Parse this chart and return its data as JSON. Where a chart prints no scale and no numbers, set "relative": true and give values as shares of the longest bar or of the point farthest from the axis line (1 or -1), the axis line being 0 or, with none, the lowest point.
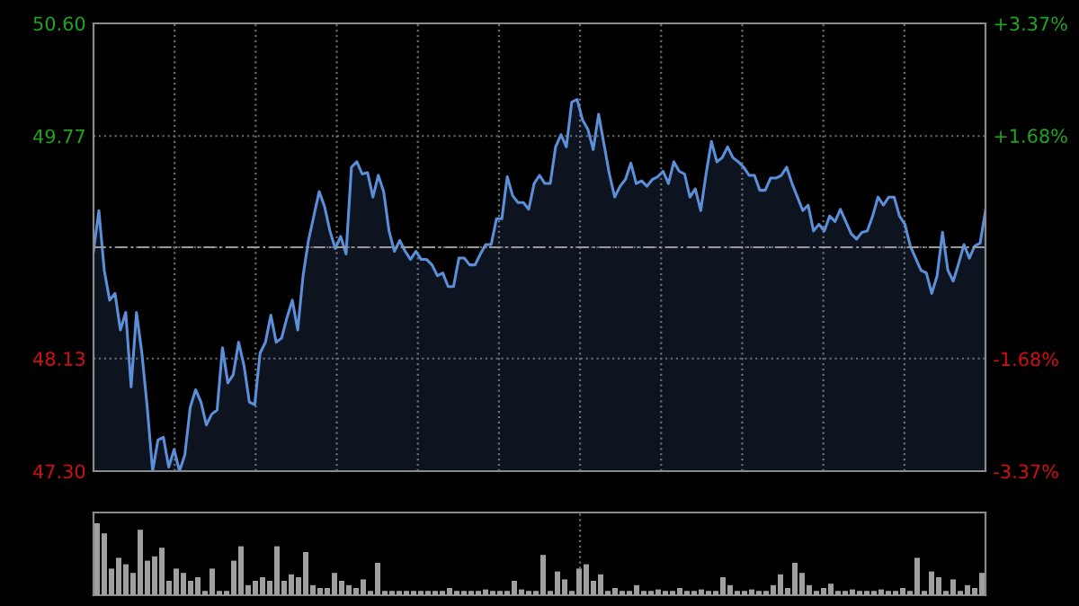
{
  "chart_data": [
    {
      "type": "area",
      "grid": true,
      "tick_labels": "y",
      "line_style": "solid",
      "ylim": [
        47.3,
        50.6
      ],
      "yticks": [
        {
          "value": 47.3,
          "label": "47.30"
        },
        {
          "value": 48.13,
          "label": "48.13"
        },
        {
          "value": 48.95,
          "label": null
        },
        {
          "value": 49.77,
          "label": "49.77"
        },
        {
          "value": 50.6,
          "label": "50.60"
        }
      ],
      "y2lim": [
        -3.37,
        3.37
      ],
      "y2ticks": [
        {
          "value": -3.37,
          "label": "-3.37%"
        },
        {
          "value": -1.68,
          "label": "-1.68%"
        },
        {
          "value": 0,
          "label": null
        },
        {
          "value": 1.68,
          "label": "+1.68%"
        },
        {
          "value": 3.37,
          "label": "+3.37%"
        }
      ],
      "ref_lines": [
        {
          "axis": "y",
          "value": 48.95,
          "label": null,
          "color": "#9a9a9a",
          "line_style": "dashed"
        }
      ],
      "categories": [
        null,
        null,
        null,
        null,
        null,
        null,
        null,
        null,
        null,
        null,
        null,
        null,
        null,
        null,
        null,
        null,
        null,
        null,
        null,
        null,
        null,
        null,
        null,
        null,
        null,
        null,
        null,
        null,
        null,
        null,
        null,
        null,
        null,
        null,
        null,
        null,
        null,
        null,
        null,
        null,
        null,
        null,
        null,
        null,
        null,
        null,
        null,
        null,
        null,
        null,
        null,
        null,
        null,
        null,
        null,
        null,
        null,
        null,
        null,
        null,
        null,
        null,
        null,
        null,
        null,
        null,
        null,
        null,
        null,
        null,
        null,
        null,
        null,
        null,
        null,
        null,
        null,
        null,
        null,
        null,
        null,
        null,
        null,
        null,
        null,
        null,
        null,
        null,
        null,
        null,
        null,
        null,
        null,
        null,
        null,
        null,
        null,
        null,
        null,
        null,
        null,
        null,
        null,
        null,
        null,
        null,
        null,
        null,
        null,
        null,
        null,
        null,
        null,
        null,
        null,
        null,
        null,
        null,
        null,
        null,
        null,
        null,
        null,
        null,
        null,
        null,
        null,
        null,
        null,
        null,
        null,
        null,
        null,
        null,
        null,
        null,
        null,
        null,
        null,
        null,
        null,
        null,
        null,
        null,
        null,
        null,
        null,
        null,
        null,
        null,
        null,
        null,
        null,
        null,
        null,
        null,
        null,
        null,
        null,
        null,
        null,
        null,
        null,
        null,
        null,
        null,
        null
      ],
      "series": [
        {
          "color": "#5b8fd9",
          "values": [
            48.92,
            49.22,
            48.78,
            48.56,
            48.61,
            48.34,
            48.47,
            47.92,
            48.47,
            48.17,
            47.77,
            47.3,
            47.53,
            47.55,
            47.33,
            47.46,
            47.3,
            47.42,
            47.77,
            47.9,
            47.81,
            47.64,
            47.72,
            47.75,
            48.21,
            47.95,
            48.01,
            48.25,
            48.08,
            47.81,
            47.79,
            48.17,
            48.25,
            48.45,
            48.25,
            48.28,
            48.43,
            48.56,
            48.34,
            48.74,
            49.0,
            49.18,
            49.36,
            49.25,
            49.07,
            48.94,
            49.03,
            48.9,
            49.54,
            49.58,
            49.49,
            49.5,
            49.32,
            49.48,
            49.36,
            49.07,
            48.92,
            49.0,
            48.92,
            48.86,
            48.92,
            48.86,
            48.86,
            48.82,
            48.74,
            48.76,
            48.66,
            48.66,
            48.87,
            48.87,
            48.82,
            48.82,
            48.9,
            48.97,
            48.97,
            49.16,
            49.16,
            49.47,
            49.33,
            49.28,
            49.28,
            49.23,
            49.42,
            49.48,
            49.42,
            49.42,
            49.69,
            49.78,
            49.69,
            50.02,
            50.04,
            49.89,
            49.82,
            49.67,
            49.93,
            49.71,
            49.49,
            49.32,
            49.4,
            49.45,
            49.57,
            49.42,
            49.44,
            49.4,
            49.45,
            49.47,
            49.51,
            49.42,
            49.58,
            49.51,
            49.49,
            49.32,
            49.38,
            49.22,
            49.49,
            49.73,
            49.58,
            49.61,
            49.69,
            49.61,
            49.58,
            49.54,
            49.48,
            49.48,
            49.37,
            49.37,
            49.46,
            49.46,
            49.48,
            49.54,
            49.42,
            49.32,
            49.22,
            49.26,
            49.07,
            49.12,
            49.07,
            49.18,
            49.14,
            49.23,
            49.14,
            49.05,
            49.01,
            49.06,
            49.07,
            49.18,
            49.32,
            49.26,
            49.32,
            49.32,
            49.18,
            49.12,
            48.96,
            48.87,
            48.78,
            48.76,
            48.61,
            48.74,
            49.06,
            48.78,
            48.7,
            48.83,
            48.97,
            48.87,
            48.96,
            48.98,
            49.22
          ]
        }
      ]
    },
    {
      "type": "bar",
      "relative": true,
      "grid": "x",
      "tick_labels": false,
      "color": "#a0a0a0",
      "categories": [
        null,
        null,
        null,
        null,
        null,
        null,
        null,
        null,
        null,
        null,
        null,
        null,
        null,
        null,
        null,
        null,
        null,
        null,
        null,
        null,
        null,
        null,
        null,
        null,
        null,
        null,
        null,
        null,
        null,
        null,
        null,
        null,
        null,
        null,
        null,
        null,
        null,
        null,
        null,
        null,
        null,
        null,
        null,
        null,
        null,
        null,
        null,
        null,
        null,
        null,
        null,
        null,
        null,
        null,
        null,
        null,
        null,
        null,
        null,
        null,
        null,
        null,
        null,
        null,
        null,
        null,
        null,
        null,
        null,
        null,
        null,
        null,
        null,
        null,
        null,
        null,
        null,
        null,
        null,
        null,
        null,
        null,
        null,
        null,
        null,
        null,
        null,
        null,
        null,
        null,
        null,
        null,
        null,
        null,
        null,
        null,
        null,
        null,
        null,
        null,
        null,
        null,
        null,
        null,
        null,
        null,
        null,
        null,
        null,
        null,
        null,
        null,
        null,
        null,
        null,
        null,
        null,
        null,
        null,
        null,
        null,
        null,
        null,
        null
      ],
      "values": [
        1.0,
        0.86,
        0.37,
        0.52,
        0.43,
        0.31,
        0.91,
        0.48,
        0.54,
        0.66,
        0.2,
        0.37,
        0.31,
        0.2,
        0.25,
        0.06,
        0.37,
        0.06,
        0.06,
        0.48,
        0.68,
        0.14,
        0.2,
        0.25,
        0.2,
        0.68,
        0.2,
        0.29,
        0.25,
        0.6,
        0.14,
        0.1,
        0.1,
        0.31,
        0.2,
        0.14,
        0.1,
        0.22,
        0.06,
        0.45,
        0.06,
        0.06,
        0.06,
        0.06,
        0.06,
        0.06,
        0.06,
        0.06,
        0.06,
        0.1,
        0.06,
        0.06,
        0.06,
        0.06,
        0.08,
        0.06,
        0.06,
        0.06,
        0.2,
        0.08,
        0.06,
        0.06,
        0.56,
        0.06,
        0.33,
        0.22,
        0.06,
        0.37,
        0.43,
        0.2,
        0.29,
        0.06,
        0.1,
        0.06,
        0.06,
        0.14,
        0.06,
        0.06,
        0.08,
        0.06,
        0.06,
        0.1,
        0.06,
        0.06,
        0.08,
        0.06,
        0.06,
        0.25,
        0.14,
        0.06,
        0.06,
        0.08,
        0.06,
        0.06,
        0.14,
        0.29,
        0.1,
        0.45,
        0.31,
        0.14,
        0.06,
        0.1,
        0.16,
        0.06,
        0.06,
        0.08,
        0.06,
        0.06,
        0.06,
        0.08,
        0.06,
        0.06,
        0.1,
        0.06,
        0.52,
        0.06,
        0.33,
        0.25,
        0.06,
        0.22,
        0.06,
        0.14,
        0.1,
        0.31
      ]
    }
  ]
}
